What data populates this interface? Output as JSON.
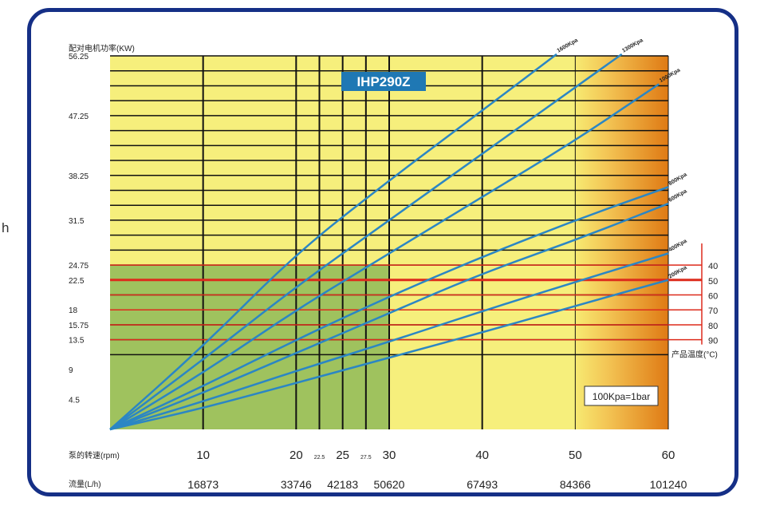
{
  "stray_char": "h",
  "chart_data": {
    "type": "line",
    "title": "IHP290Z",
    "ylabel": "配对电机功率(KW)",
    "xlabel_rpm": "泵的转速(rpm)",
    "xlabel_flow": "流量(L/h)",
    "temp_label": "产品温度(°C)",
    "note": "100Kpa=1bar",
    "xlim": [
      0,
      60
    ],
    "ylim": [
      0,
      56.25
    ],
    "y_ticks": [
      {
        "v": 56.25,
        "label": "56.25"
      },
      {
        "v": 47.25,
        "label": "47.25"
      },
      {
        "v": 38.25,
        "label": "38.25"
      },
      {
        "v": 31.5,
        "label": "31.5"
      },
      {
        "v": 24.75,
        "label": "24.75"
      },
      {
        "v": 22.5,
        "label": "22.5"
      },
      {
        "v": 18,
        "label": "18"
      },
      {
        "v": 15.75,
        "label": "15.75"
      },
      {
        "v": 13.5,
        "label": "13.5"
      },
      {
        "v": 9,
        "label": "9"
      },
      {
        "v": 4.5,
        "label": "4.5"
      }
    ],
    "y_gridlines": [
      56.25,
      54,
      51.75,
      49.5,
      47.25,
      45,
      42.75,
      40.5,
      38.25,
      36,
      33.75,
      31.5,
      29.25,
      27,
      24.75,
      22.5,
      20.25,
      18,
      15.75,
      13.5,
      11.25
    ],
    "x_ticks": [
      {
        "v": 10,
        "label": "10",
        "flow": "16873"
      },
      {
        "v": 20,
        "label": "20",
        "flow": "33746"
      },
      {
        "v": 22.5,
        "label": "22.5",
        "flow": ""
      },
      {
        "v": 25,
        "label": "25",
        "flow": "42183"
      },
      {
        "v": 27.5,
        "label": "27.5",
        "flow": ""
      },
      {
        "v": 30,
        "label": "30",
        "flow": "50620"
      },
      {
        "v": 40,
        "label": "40",
        "flow": "67493"
      },
      {
        "v": 50,
        "label": "50",
        "flow": "84366"
      },
      {
        "v": 60,
        "label": "60",
        "flow": "101240"
      }
    ],
    "temperatures": [
      {
        "v": 24.75,
        "label": "40"
      },
      {
        "v": 22.5,
        "label": "50"
      },
      {
        "v": 20.25,
        "label": "60"
      },
      {
        "v": 18,
        "label": "70"
      },
      {
        "v": 15.75,
        "label": "80"
      },
      {
        "v": 13.5,
        "label": "90"
      }
    ],
    "series": [
      {
        "name": "1600Kpa",
        "x": [
          0,
          10,
          20,
          30,
          40,
          48
        ],
        "y": [
          0,
          12.5,
          26.5,
          37.5,
          48,
          56.5
        ]
      },
      {
        "name": "1300Kpa",
        "x": [
          0,
          10,
          20,
          30,
          40,
          50,
          55
        ],
        "y": [
          0,
          10.5,
          21.5,
          31.5,
          41.5,
          51.5,
          56.5
        ]
      },
      {
        "name": "1000Kpa",
        "x": [
          0,
          10,
          20,
          30,
          40,
          50,
          59
        ],
        "y": [
          0,
          8.5,
          18,
          26.5,
          35,
          43.5,
          52
        ]
      },
      {
        "name": "800Kpa",
        "x": [
          0,
          10,
          20,
          30,
          40,
          50,
          60
        ],
        "y": [
          0,
          6.5,
          13.5,
          20,
          26,
          31.5,
          36.5
        ]
      },
      {
        "name": "600Kpa",
        "x": [
          0,
          10,
          20,
          30,
          40,
          50,
          60
        ],
        "y": [
          0,
          5.5,
          11.5,
          17.5,
          23.5,
          28.5,
          34
        ]
      },
      {
        "name": "400Kpa",
        "x": [
          0,
          10,
          20,
          30,
          40,
          50,
          60
        ],
        "y": [
          0,
          4.2,
          8.8,
          13.2,
          17.8,
          22.2,
          26.5
        ]
      },
      {
        "name": "200Kpa",
        "x": [
          0,
          10,
          20,
          30,
          40,
          50,
          60
        ],
        "y": [
          0,
          3.2,
          7,
          10.8,
          14.6,
          18.6,
          22.5
        ]
      }
    ],
    "colors": {
      "frame": "#152f86",
      "yellow": "#f6ef7c",
      "green": "#9fc25e",
      "orange": "#df7a14",
      "curve": "#2b86c4",
      "grid": "#111111",
      "red": "#dd2b1c",
      "badge": "#1f78b4"
    }
  }
}
